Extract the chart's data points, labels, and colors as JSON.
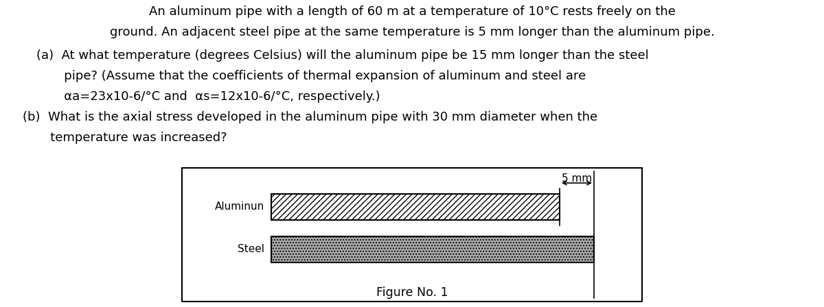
{
  "background_color": "#ffffff",
  "text_color": "#000000",
  "line1": "An aluminum pipe with a length of 60 m at a temperature of 10°C rests freely on the",
  "line2": "ground. An adjacent steel pipe at the same temperature is 5 mm longer than the aluminum pipe.",
  "line3": "    (a)  At what temperature (degrees Celsius) will the aluminum pipe be 15 mm longer than the steel",
  "line4": "           pipe? (Assume that the coefficients of thermal expansion of aluminum and steel are",
  "line5": "           αa=23x10-6/°C and  αs=12x10-6/°C, respectively.)",
  "line6": "    (b)  What is the axial stress developed in the aluminum pipe with 30 mm diameter when the",
  "line7": "           temperature was increased?",
  "figure_label": "Figure No. 1",
  "aluminum_label": "Aluminun",
  "steel_label": "Steel",
  "dim_label": "5 mm",
  "font_size_text": 13.0,
  "font_size_fig": 12.5,
  "font_family": "DejaVu Sans"
}
